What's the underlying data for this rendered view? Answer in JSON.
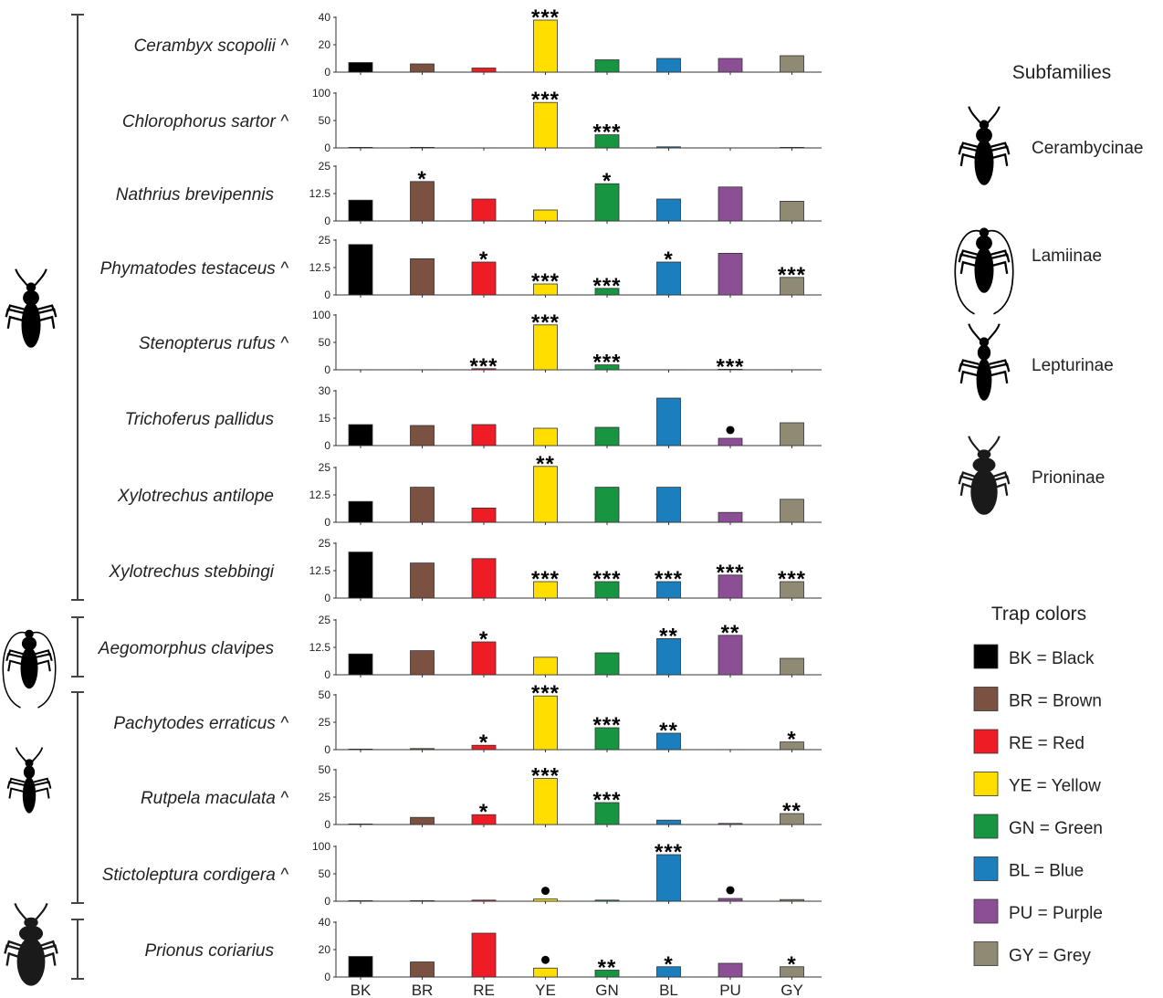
{
  "chart_data": {
    "type": "bar",
    "categories": [
      "BK",
      "BR",
      "RE",
      "YE",
      "GN",
      "BL",
      "PU",
      "GY"
    ],
    "bar_colors": [
      "#000000",
      "#7b5142",
      "#ee1c24",
      "#ffde00",
      "#179540",
      "#1b7fbd",
      "#8c4f96",
      "#8f8a73"
    ],
    "grid": false,
    "panels": [
      {
        "species": "Cerambyx scopolii ^",
        "yticks": [
          "0",
          "20",
          "40"
        ],
        "ylim": [
          0,
          40
        ],
        "values": [
          7,
          6,
          3,
          38,
          9,
          10,
          10,
          12
        ],
        "marks": [
          "",
          "",
          "",
          "***",
          "",
          "",
          "",
          ""
        ]
      },
      {
        "species": "Chlorophorus sartor ^",
        "yticks": [
          "0",
          "50",
          "100"
        ],
        "ylim": [
          0,
          100
        ],
        "values": [
          1,
          1,
          0,
          83,
          24,
          2,
          0,
          1
        ],
        "marks": [
          "",
          "",
          "",
          "***",
          "***",
          "",
          "",
          ""
        ]
      },
      {
        "species": "Nathrius brevipennis",
        "yticks": [
          "0",
          "12.5",
          "25"
        ],
        "ylim": [
          0,
          25
        ],
        "values": [
          9.5,
          18,
          10,
          5,
          17,
          10,
          15.5,
          9
        ],
        "marks": [
          "",
          "*",
          "",
          "",
          "*",
          "",
          "",
          ""
        ]
      },
      {
        "species": "Phymatodes testaceus ^",
        "yticks": [
          "0",
          "12.5",
          "25"
        ],
        "ylim": [
          0,
          25
        ],
        "values": [
          23,
          16.5,
          15,
          5,
          3,
          15,
          19,
          8
        ],
        "marks": [
          "",
          "",
          "*",
          "***",
          "***",
          "*",
          "",
          "***"
        ]
      },
      {
        "species": "Stenopterus rufus ^",
        "yticks": [
          "0",
          "50",
          "100"
        ],
        "ylim": [
          0,
          100
        ],
        "values": [
          0,
          0,
          2,
          82,
          9,
          0,
          1,
          0
        ],
        "marks": [
          "",
          "",
          "***",
          "***",
          "***",
          "",
          "***",
          ""
        ]
      },
      {
        "species": "Trichoferus pallidus",
        "yticks": [
          "0",
          "15",
          "30"
        ],
        "ylim": [
          0,
          30
        ],
        "values": [
          11.5,
          11,
          11.5,
          9.5,
          10,
          26,
          4,
          12.5
        ],
        "marks": [
          "",
          "",
          "",
          "",
          "",
          "",
          "●",
          ""
        ]
      },
      {
        "species": "Xylotrechus antilope",
        "yticks": [
          "0",
          "12.5",
          "25"
        ],
        "ylim": [
          0,
          25
        ],
        "values": [
          9.5,
          16,
          6.5,
          25.5,
          16,
          16,
          4.5,
          10.5
        ],
        "marks": [
          "",
          "",
          "",
          "**",
          "",
          "",
          "",
          ""
        ]
      },
      {
        "species": "Xylotrechus stebbingi",
        "yticks": [
          "0",
          "12.5",
          "25"
        ],
        "ylim": [
          0,
          25
        ],
        "values": [
          21,
          16,
          18,
          7.5,
          7.5,
          7.5,
          10.5,
          7.5
        ],
        "marks": [
          "",
          "",
          "",
          "***",
          "***",
          "***",
          "***",
          "***"
        ]
      },
      {
        "species": "Aegomorphus clavipes",
        "yticks": [
          "0",
          "12.5",
          "25"
        ],
        "ylim": [
          0,
          25
        ],
        "values": [
          9.5,
          11,
          15,
          8,
          10,
          16.5,
          18,
          7.5
        ],
        "marks": [
          "",
          "",
          "*",
          "",
          "",
          "**",
          "**",
          ""
        ]
      },
      {
        "species": "Pachytodes erraticus ^",
        "yticks": [
          "0",
          "25",
          "50"
        ],
        "ylim": [
          0,
          50
        ],
        "values": [
          0.5,
          1,
          4,
          49,
          20,
          15,
          0,
          7
        ],
        "marks": [
          "",
          "",
          "*",
          "***",
          "***",
          "**",
          "",
          "*"
        ]
      },
      {
        "species": "Rutpela maculata ^",
        "yticks": [
          "0",
          "25",
          "50"
        ],
        "ylim": [
          0,
          50
        ],
        "values": [
          0.5,
          6.5,
          9,
          42,
          20,
          4,
          1,
          10
        ],
        "marks": [
          "",
          "",
          "*",
          "***",
          "***",
          "",
          "",
          "**"
        ]
      },
      {
        "species": "Stictoleptura cordigera ^",
        "yticks": [
          "0",
          "50",
          "100"
        ],
        "ylim": [
          0,
          100
        ],
        "values": [
          1,
          1,
          2,
          4,
          2,
          85,
          5,
          3
        ],
        "marks": [
          "",
          "",
          "",
          "●",
          "",
          "***",
          "●",
          ""
        ]
      },
      {
        "species": "Prionus coriarius",
        "yticks": [
          "0",
          "20",
          "40"
        ],
        "ylim": [
          0,
          40
        ],
        "values": [
          15,
          11,
          32,
          6.5,
          5,
          7.5,
          10,
          7.5
        ],
        "marks": [
          "",
          "",
          "",
          "●",
          "**",
          "*",
          "",
          "*"
        ]
      }
    ],
    "groups": [
      {
        "icon": "cerambycinae-beetle-icon",
        "panels": [
          0,
          7
        ]
      },
      {
        "icon": "lamiinae-beetle-icon",
        "panels": [
          8,
          8
        ]
      },
      {
        "icon": "lepturinae-beetle-icon",
        "panels": [
          9,
          11
        ]
      },
      {
        "icon": "prioninae-beetle-icon",
        "panels": [
          12,
          12
        ]
      }
    ],
    "legend_subfamilies": {
      "title": "Subfamilies",
      "items": [
        {
          "label": "Cerambycinae",
          "icon": "cerambycinae-beetle-icon"
        },
        {
          "label": "Lamiinae",
          "icon": "lamiinae-beetle-icon"
        },
        {
          "label": "Lepturinae",
          "icon": "lepturinae-beetle-icon"
        },
        {
          "label": "Prioninae",
          "icon": "prioninae-beetle-icon"
        }
      ]
    },
    "legend_colors": {
      "title": "Trap colors",
      "items": [
        "BK = Black",
        "BR = Brown",
        "RE = Red",
        "YE = Yellow",
        "GN = Green",
        "BL = Blue",
        "PU = Purple",
        "GY = Grey"
      ]
    }
  }
}
